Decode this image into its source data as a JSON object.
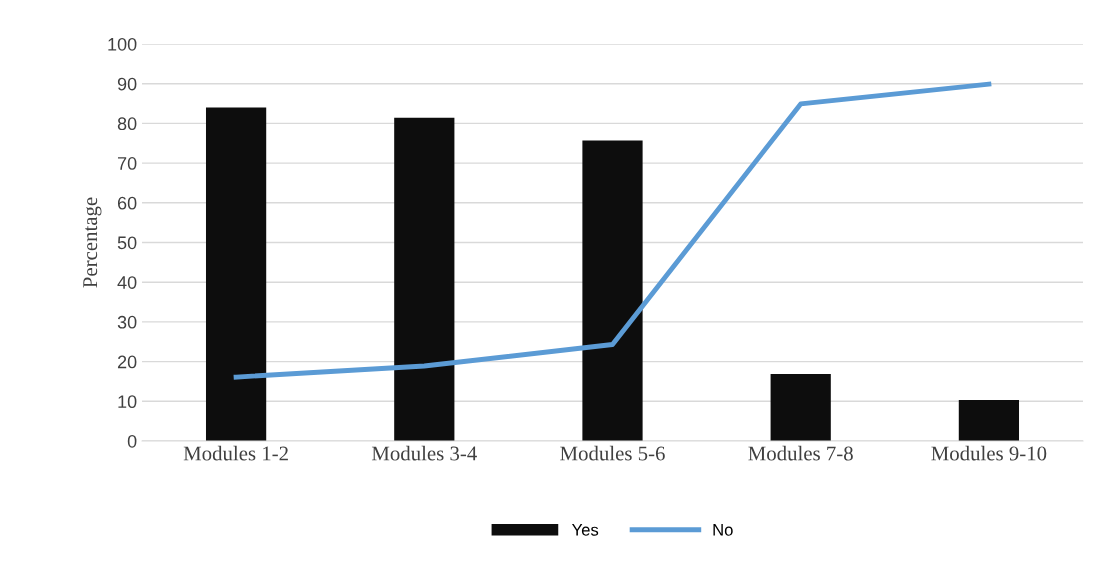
{
  "chart_data": {
    "type": "bar",
    "ylabel": "Percentage",
    "categories": [
      "Modules 1-2",
      "Modules 3-4",
      "Modules 5-6",
      "Modules 7-8",
      "Modules 9-10"
    ],
    "series": [
      {
        "name": "Yes",
        "color": "#0d0d0d",
        "values": [
          84,
          81.4,
          75.7,
          16.9,
          10.3
        ]
      },
      {
        "name": "No",
        "type": "line",
        "color": "#5b9bd5",
        "values": [
          16.1,
          18.9,
          24.3,
          84.9,
          89.9
        ]
      }
    ],
    "ylim": [
      0,
      100
    ],
    "yticks": [
      0,
      10,
      20,
      30,
      40,
      50,
      60,
      70,
      80,
      90,
      100
    ],
    "grid": "y",
    "legend": "bottom"
  }
}
